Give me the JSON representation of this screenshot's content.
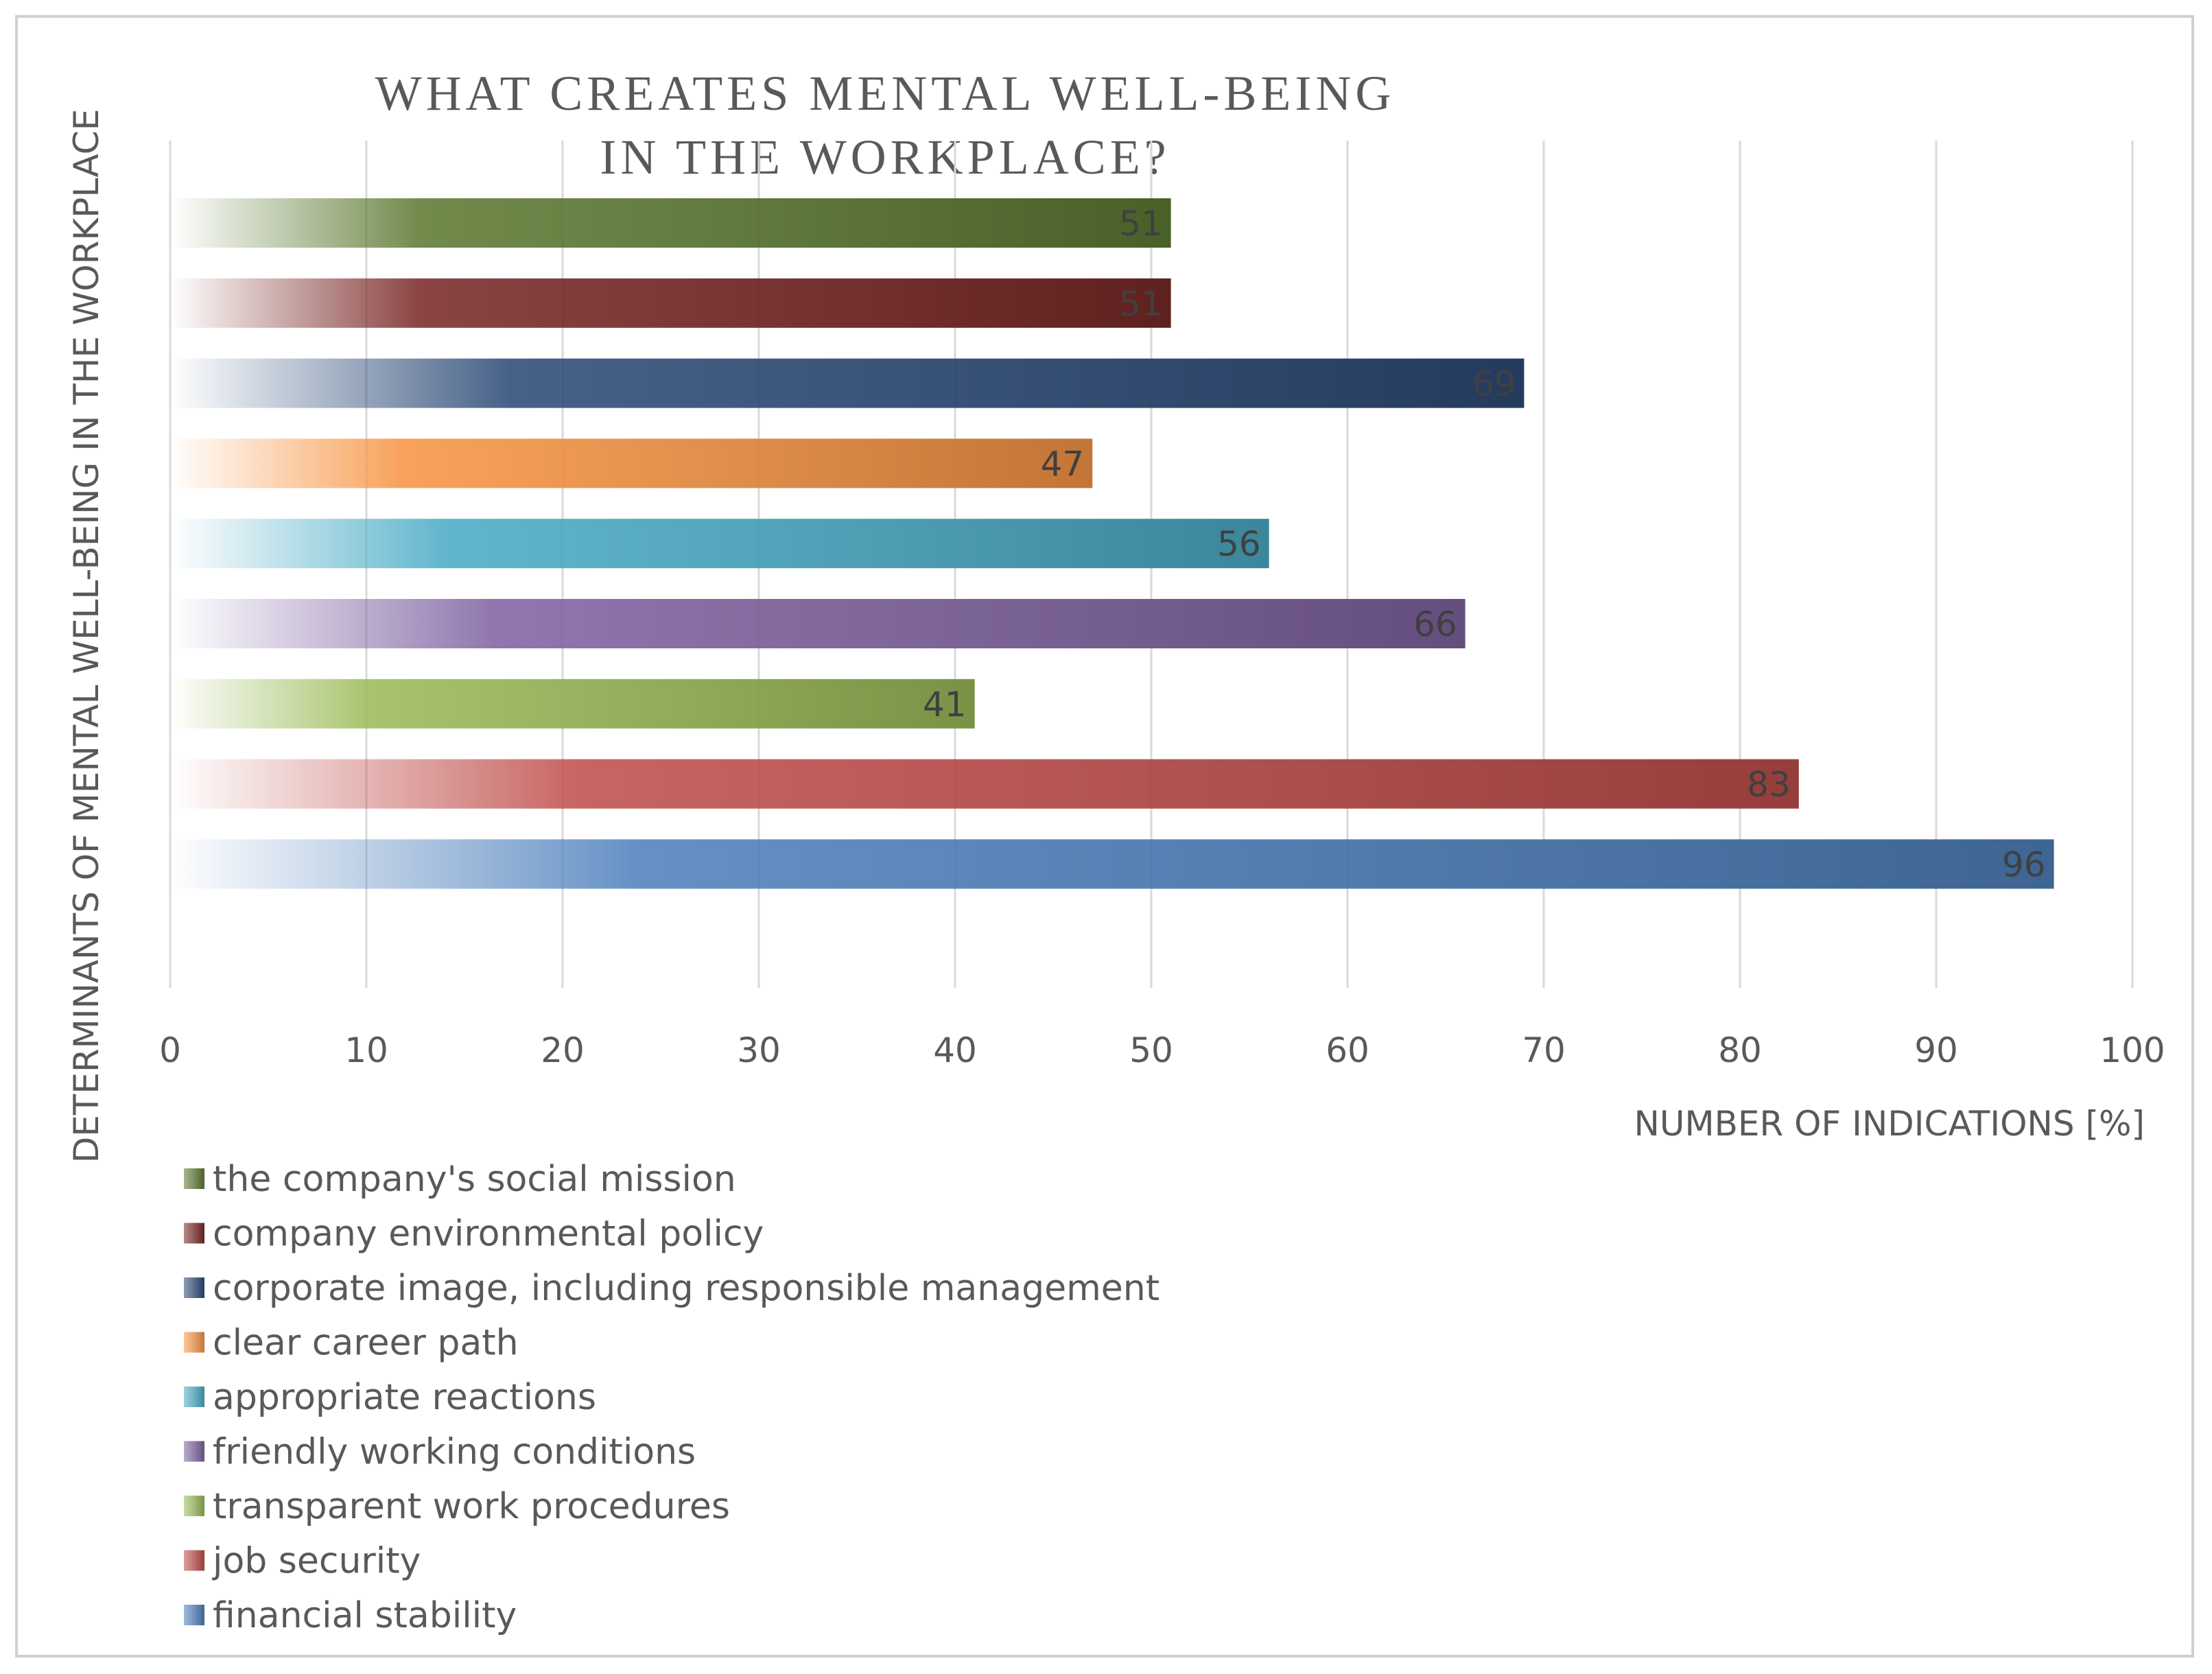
{
  "chart_data": {
    "type": "bar",
    "orientation": "horizontal",
    "title_lines": [
      "WHAT CREATES MENTAL  WELL-BEING",
      "IN THE  WORKPLACE?"
    ],
    "xlabel": "NUMBER OF INDICATIONS [%]",
    "ylabel": "DETERMINANTS OF MENTAL WELL-BEING IN THE WORKPLACE",
    "xlim": [
      0,
      100
    ],
    "x_ticks": [
      0,
      10,
      20,
      30,
      40,
      50,
      60,
      70,
      80,
      90,
      100
    ],
    "grid": true,
    "legend_position": "bottom-left",
    "series": [
      {
        "name": "the company's social mission",
        "value": 51,
        "label": "51",
        "color": "#5E7B34"
      },
      {
        "name": "company environmental policy",
        "value": 51,
        "label": "51",
        "color": "#7A2A28"
      },
      {
        "name": "corporate image, including responsible management",
        "value": 69,
        "label": "69",
        "color": "#2E4C78"
      },
      {
        "name": "clear career path",
        "value": 47,
        "label": "47",
        "color": "#F79646"
      },
      {
        "name": "appropriate reactions",
        "value": 56,
        "label": "56",
        "color": "#4BACC6"
      },
      {
        "name": "friendly working conditions",
        "value": 66,
        "label": "66",
        "color": "#8064A2"
      },
      {
        "name": "transparent work procedures",
        "value": 41,
        "label": "41",
        "color": "#9BBB59"
      },
      {
        "name": "job security",
        "value": 83,
        "label": "83",
        "color": "#C0504D"
      },
      {
        "name": "financial stability",
        "value": 96,
        "label": "96",
        "color": "#4F81BD"
      }
    ]
  }
}
